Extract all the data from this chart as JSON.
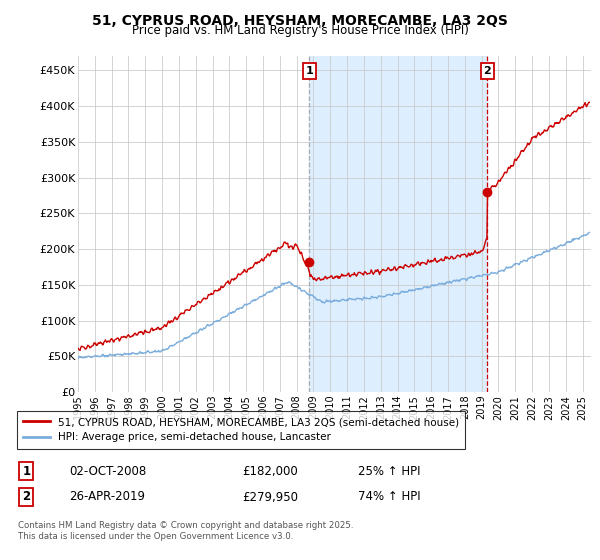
{
  "title_line1": "51, CYPRUS ROAD, HEYSHAM, MORECAMBE, LA3 2QS",
  "title_line2": "Price paid vs. HM Land Registry's House Price Index (HPI)",
  "red_label": "51, CYPRUS ROAD, HEYSHAM, MORECAMBE, LA3 2QS (semi-detached house)",
  "blue_label": "HPI: Average price, semi-detached house, Lancaster",
  "footnote": "Contains HM Land Registry data © Crown copyright and database right 2025.\nThis data is licensed under the Open Government Licence v3.0.",
  "annotation1_label": "1",
  "annotation1_date": "02-OCT-2008",
  "annotation1_price": "£182,000",
  "annotation1_hpi": "25% ↑ HPI",
  "annotation2_label": "2",
  "annotation2_date": "26-APR-2019",
  "annotation2_price": "£279,950",
  "annotation2_hpi": "74% ↑ HPI",
  "ylim": [
    0,
    470000
  ],
  "yticks": [
    0,
    50000,
    100000,
    150000,
    200000,
    250000,
    300000,
    350000,
    400000,
    450000
  ],
  "ytick_labels": [
    "£0",
    "£50K",
    "£100K",
    "£150K",
    "£200K",
    "£250K",
    "£300K",
    "£350K",
    "£400K",
    "£450K"
  ],
  "red_color": "#cc0000",
  "blue_color": "#7aaddc",
  "shade_color": "#ddeeff",
  "vline1_color": "#aaaaaa",
  "vline2_color": "#cc0000",
  "background_color": "#ffffff",
  "grid_color": "#cccccc",
  "marker1_x": 2008.75,
  "marker1_y": 182000,
  "marker2_x": 2019.33,
  "marker2_y": 279950,
  "xlim_left": 1995.0,
  "xlim_right": 2025.5
}
